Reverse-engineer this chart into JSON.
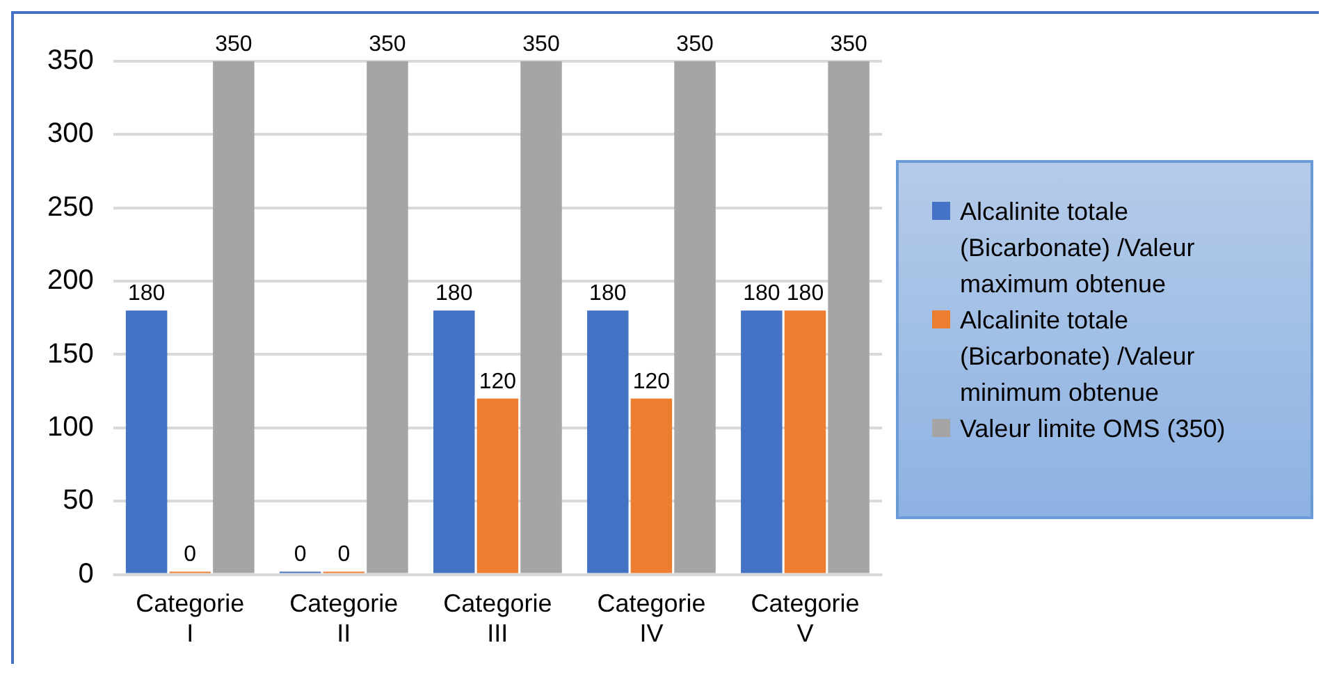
{
  "chart_data": {
    "type": "bar",
    "categories": [
      "Categorie I",
      "Categorie II",
      "Categorie III",
      "Categorie IV",
      "Categorie V"
    ],
    "series": [
      {
        "name": "Alcalinite totale (Bicarbonate) /Valeur maximum obtenue",
        "color": "#4472c4",
        "values": [
          180,
          0,
          180,
          180,
          180
        ]
      },
      {
        "name": "Alcalinite totale (Bicarbonate) /Valeur minimum obtenue",
        "color": "#ed7d31",
        "values": [
          0,
          0,
          120,
          120,
          180
        ]
      },
      {
        "name": "Valeur limite OMS (350)",
        "color": "#a5a5a5",
        "values": [
          350,
          350,
          350,
          350,
          350
        ]
      }
    ],
    "ylim": [
      0,
      350
    ],
    "yticks": [
      0,
      50,
      100,
      150,
      200,
      250,
      300,
      350
    ],
    "grid": "y",
    "legend": "right",
    "data_labels": true
  }
}
